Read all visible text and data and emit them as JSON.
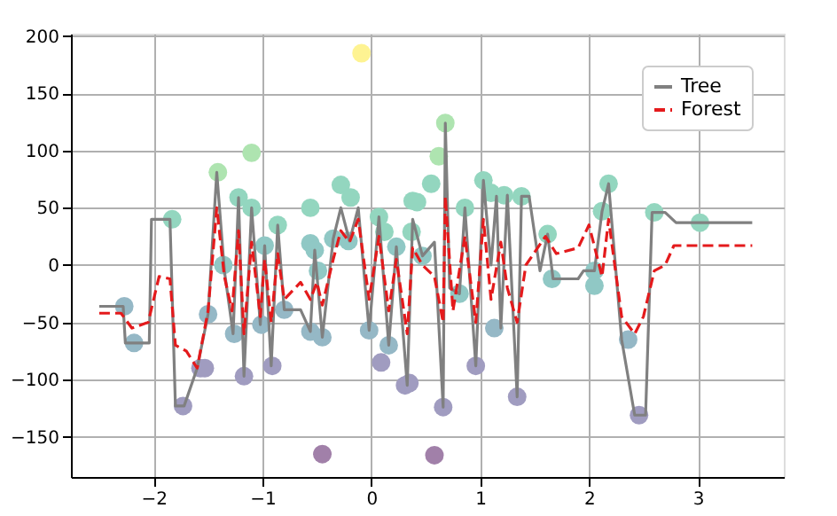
{
  "chart_data": {
    "type": "scatter",
    "xlim": [
      -2.76,
      3.79
    ],
    "ylim": [
      -185,
      202
    ],
    "xticks": [
      {
        "value": -2,
        "label": "−2"
      },
      {
        "value": -1,
        "label": "−1"
      },
      0,
      1,
      2,
      3
    ],
    "yticks": [
      {
        "value": -150,
        "label": "−150"
      },
      {
        "value": -100,
        "label": "−100"
      },
      {
        "value": -50,
        "label": "−50"
      },
      0,
      50,
      100,
      150,
      200
    ],
    "grid": true,
    "legend": "top right",
    "series": [
      {
        "marker": "circle",
        "x": [
          -2.27,
          -2.18,
          -1.83,
          -1.73,
          -1.57,
          -1.53,
          -1.5,
          -1.41,
          -1.36,
          -1.26,
          -1.22,
          -1.17,
          -1.1,
          -1.1,
          -1.01,
          -0.98,
          -0.91,
          -0.86,
          -0.8,
          -0.56,
          -0.56,
          -0.56,
          -0.52,
          -0.49,
          -0.45,
          -0.45,
          -0.35,
          -0.28,
          -0.21,
          -0.19,
          -0.09,
          -0.02,
          0.07,
          0.09,
          0.12,
          0.16,
          0.23,
          0.31,
          0.35,
          0.37,
          0.38,
          0.42,
          0.47,
          0.55,
          0.58,
          0.62,
          0.66,
          0.68,
          0.81,
          0.86,
          0.96,
          1.03,
          1.1,
          1.13,
          1.22,
          1.34,
          1.38,
          1.62,
          1.66,
          2.05,
          2.05,
          2.12,
          2.18,
          2.36,
          2.46,
          2.6,
          3.02
        ],
        "values": [
          -36,
          -68,
          40,
          -123,
          -90,
          -90,
          -43,
          81,
          0,
          -60,
          59,
          -97,
          98,
          50,
          -52,
          17,
          -88,
          35,
          -39,
          50,
          19,
          -58,
          13,
          -5,
          -63,
          -165,
          23,
          70,
          21,
          59,
          185,
          -57,
          42,
          -85,
          29,
          -70,
          16,
          -105,
          -103,
          29,
          56,
          55,
          8,
          71,
          -166,
          95,
          -124,
          124,
          -25,
          50,
          -88,
          74,
          63,
          -55,
          61,
          -115,
          60,
          27,
          -12,
          -5,
          -18,
          47,
          71,
          -65,
          -131,
          46,
          37
        ],
        "colors": [
          "#95b8c6",
          "#95b8c6",
          "#93d6bf",
          "#a09cc0",
          "#a09cc0",
          "#a09cc0",
          "#95b8c6",
          "#aee4b0",
          "#90c8c5",
          "#95b8c6",
          "#93d6bf",
          "#a09cc0",
          "#aee4b0",
          "#93d6bf",
          "#95b8c6",
          "#90c8c5",
          "#a09cc0",
          "#93d6bf",
          "#95b8c6",
          "#93d6bf",
          "#90c8c5",
          "#95b8c6",
          "#90c8c5",
          "#90c8c5",
          "#95b8c6",
          "#a180a9",
          "#90c8c5",
          "#93d6bf",
          "#90c8c5",
          "#93d6bf",
          "#fef392",
          "#95b8c6",
          "#93d6bf",
          "#a09cc0",
          "#93d6bf",
          "#95b8c6",
          "#90c8c5",
          "#a09cc0",
          "#a09cc0",
          "#93d6bf",
          "#93d6bf",
          "#93d6bf",
          "#90c8c5",
          "#93d6bf",
          "#a180a9",
          "#aee4b0",
          "#a09cc0",
          "#aee4b0",
          "#90c8c5",
          "#93d6bf",
          "#a09cc0",
          "#93d6bf",
          "#93d6bf",
          "#95b8c6",
          "#93d6bf",
          "#a09cc0",
          "#93d6bf",
          "#93d6bf",
          "#90c8c5",
          "#90c8c5",
          "#90c8c5",
          "#93d6bf",
          "#93d6bf",
          "#95b8c6",
          "#a09cc0",
          "#93d6bf",
          "#93d6bf"
        ]
      },
      {
        "type": "line",
        "name": "Tree",
        "color": "#808080",
        "line_style": "solid",
        "x": [
          -2.5,
          -2.28,
          -2.26,
          -2.04,
          -2.02,
          -1.85,
          -1.8,
          -1.72,
          -1.6,
          -1.5,
          -1.42,
          -1.35,
          -1.27,
          -1.22,
          -1.17,
          -1.1,
          -1.02,
          -0.98,
          -0.92,
          -0.86,
          -0.8,
          -0.65,
          -0.56,
          -0.52,
          -0.45,
          -0.35,
          -0.28,
          -0.2,
          -0.12,
          -0.02,
          0.07,
          0.16,
          0.23,
          0.33,
          0.38,
          0.47,
          0.58,
          0.66,
          0.68,
          0.72,
          0.81,
          0.86,
          0.96,
          1.03,
          1.1,
          1.15,
          1.19,
          1.25,
          1.34,
          1.38,
          1.45,
          1.55,
          1.62,
          1.67,
          1.9,
          1.95,
          2.05,
          2.12,
          2.18,
          2.3,
          2.42,
          2.52,
          2.58,
          2.7,
          2.8,
          3.5
        ],
        "values": [
          -36,
          -36,
          -68,
          -68,
          40,
          40,
          -123,
          -123,
          -90,
          -43,
          81,
          -5,
          -60,
          59,
          -97,
          50,
          -52,
          17,
          -88,
          35,
          -39,
          -39,
          -58,
          13,
          -63,
          23,
          50,
          21,
          50,
          -57,
          42,
          -70,
          16,
          -105,
          40,
          8,
          20,
          -124,
          124,
          -20,
          -25,
          50,
          -88,
          74,
          0,
          60,
          -55,
          61,
          -115,
          60,
          60,
          -5,
          27,
          -12,
          -12,
          -5,
          -5,
          47,
          71,
          -65,
          -131,
          -131,
          46,
          46,
          37,
          37
        ]
      },
      {
        "type": "line",
        "name": "Forest",
        "color": "#e41a1c",
        "line_style": "dashed",
        "x": [
          -2.5,
          -2.3,
          -2.2,
          -2.05,
          -1.95,
          -1.85,
          -1.8,
          -1.7,
          -1.6,
          -1.5,
          -1.42,
          -1.35,
          -1.28,
          -1.22,
          -1.17,
          -1.1,
          -1.02,
          -0.98,
          -0.92,
          -0.86,
          -0.8,
          -0.65,
          -0.56,
          -0.5,
          -0.45,
          -0.35,
          -0.28,
          -0.2,
          -0.12,
          -0.02,
          0.07,
          0.16,
          0.23,
          0.33,
          0.38,
          0.47,
          0.58,
          0.66,
          0.68,
          0.75,
          0.86,
          0.96,
          1.03,
          1.1,
          1.19,
          1.25,
          1.34,
          1.42,
          1.6,
          1.7,
          1.9,
          2.0,
          2.12,
          2.18,
          2.3,
          2.42,
          2.5,
          2.6,
          2.7,
          2.78,
          3.5
        ],
        "values": [
          -42,
          -42,
          -55,
          -50,
          -10,
          -12,
          -70,
          -75,
          -90,
          -40,
          50,
          -10,
          -40,
          30,
          -60,
          20,
          -45,
          5,
          -50,
          10,
          -30,
          -15,
          -30,
          -15,
          -35,
          5,
          30,
          20,
          40,
          -30,
          25,
          -40,
          5,
          -60,
          15,
          0,
          -10,
          -50,
          60,
          -40,
          25,
          -50,
          40,
          -30,
          20,
          -20,
          -50,
          0,
          25,
          10,
          15,
          35,
          -10,
          40,
          -45,
          -60,
          -45,
          -5,
          0,
          17,
          17
        ]
      }
    ]
  }
}
